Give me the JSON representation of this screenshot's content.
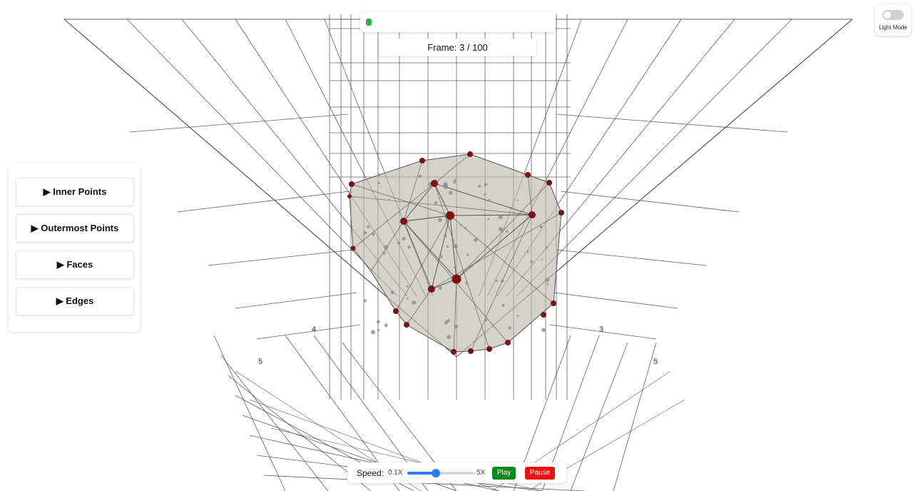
{
  "progress": {
    "frame_label": "Frame: 3 / 100",
    "current": 3,
    "total": 100
  },
  "theme_toggle": {
    "label": "Light Mode",
    "on": false
  },
  "sections": [
    {
      "label": "▶ Inner Points"
    },
    {
      "label": "▶ Outermost Points"
    },
    {
      "label": "▶ Faces"
    },
    {
      "label": "▶ Edges"
    }
  ],
  "axis_ticks": [
    "5",
    "4",
    "3",
    "5"
  ],
  "playback": {
    "speed_label": "Speed:",
    "min_label": "0.1X",
    "max_label": "5X",
    "speed_fraction": 0.42,
    "play_label": "Play",
    "pause_label": "Pause"
  },
  "colors": {
    "hull_fill": "#b9b7ab",
    "outer_point": "#7a1212",
    "inner_point": "#8a8a85",
    "grid": "#444444",
    "progress": "#28b44c",
    "play": "#0f8a1e",
    "pause": "#ee1111"
  }
}
